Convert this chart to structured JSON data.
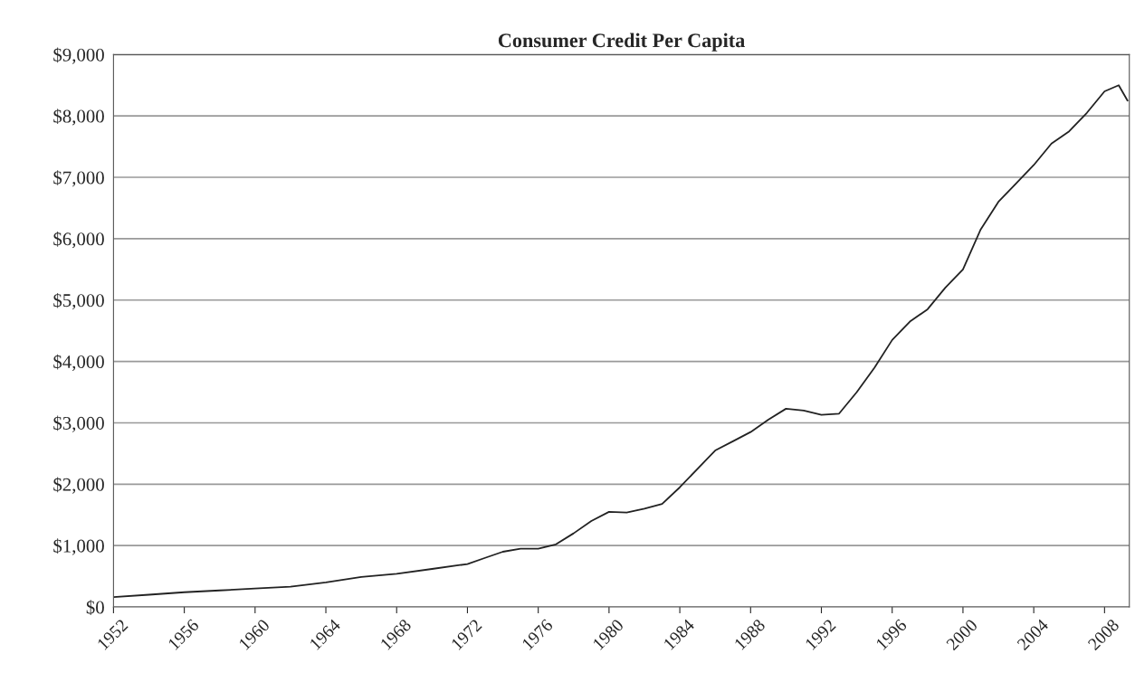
{
  "chart_data": {
    "type": "line",
    "title": "Consumer Credit Per Capita",
    "x": [
      1952,
      1954,
      1956,
      1958,
      1960,
      1962,
      1964,
      1966,
      1968,
      1970,
      1972,
      1973,
      1974,
      1975,
      1976,
      1977,
      1978,
      1979,
      1980,
      1981,
      1982,
      1983,
      1984,
      1985,
      1986,
      1987,
      1988,
      1989,
      1990,
      1991,
      1992,
      1993,
      1994,
      1995,
      1996,
      1997,
      1998,
      1999,
      2000,
      2001,
      2002,
      2003,
      2004,
      2005,
      2006,
      2007,
      2008,
      2008.8,
      2009.3
    ],
    "series": [
      {
        "color": "#222222",
        "values": [
          160,
          200,
          240,
          270,
          300,
          330,
          400,
          490,
          540,
          620,
          700,
          800,
          900,
          950,
          950,
          1020,
          1200,
          1400,
          1550,
          1540,
          1600,
          1680,
          1950,
          2250,
          2550,
          2700,
          2850,
          3050,
          3230,
          3200,
          3130,
          3150,
          3500,
          3900,
          4350,
          4650,
          4850,
          5200,
          5500,
          6150,
          6600,
          6900,
          7200,
          7550,
          7750,
          8050,
          8400,
          8500,
          8250
        ]
      }
    ],
    "xlim": [
      1952,
      2009.4
    ],
    "xticks": [
      1952,
      1956,
      1960,
      1964,
      1968,
      1972,
      1976,
      1980,
      1984,
      1988,
      1992,
      1996,
      2000,
      2004,
      2008
    ],
    "ylim": [
      0,
      9000
    ],
    "yticks": [
      {
        "value": 0,
        "label": "$0"
      },
      {
        "value": 1000,
        "label": "$1,000"
      },
      {
        "value": 2000,
        "label": "$2,000"
      },
      {
        "value": 3000,
        "label": "$3,000"
      },
      {
        "value": 4000,
        "label": "$4,000"
      },
      {
        "value": 5000,
        "label": "$5,000"
      },
      {
        "value": 6000,
        "label": "$6,000"
      },
      {
        "value": 7000,
        "label": "$7,000"
      },
      {
        "value": 8000,
        "label": "$8,000"
      },
      {
        "value": 9000,
        "label": "$9,000"
      }
    ],
    "grid": "y",
    "marker": "none",
    "line_style": "solid"
  }
}
